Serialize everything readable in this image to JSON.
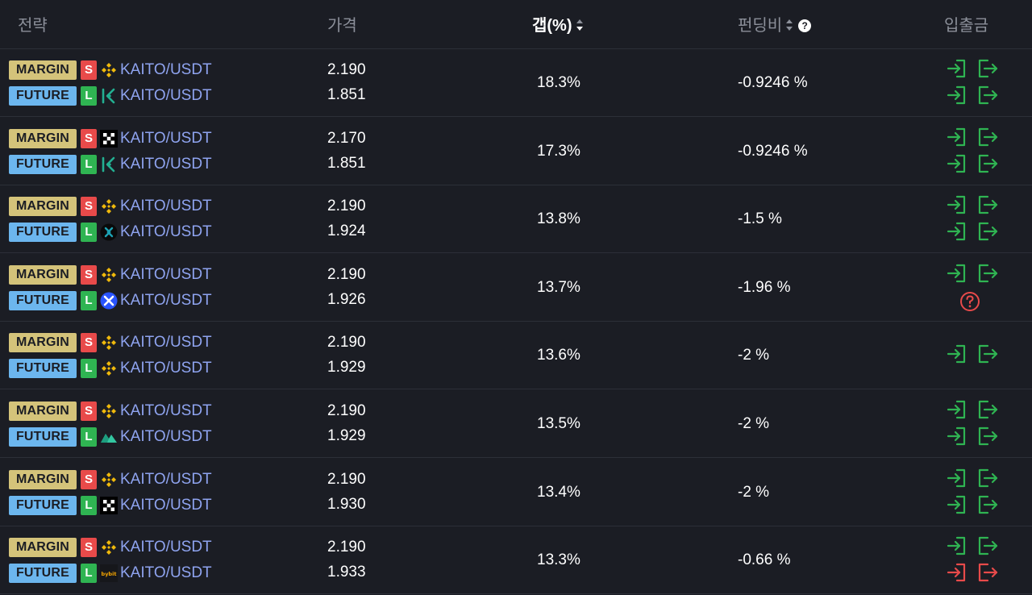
{
  "header": {
    "strategy": "전략",
    "price": "가격",
    "gap": "갭(%)",
    "funding": "펀딩비",
    "transfer": "입출금",
    "help_glyph": "?"
  },
  "colors": {
    "background": "#1b1d24",
    "margin_badge": "#d4c37a",
    "future_badge": "#6cb6ee",
    "short": "#e84a4a",
    "long": "#2fb452",
    "pair_text": "#8fa4f0",
    "transfer_ok": "#2fb452",
    "transfer_blocked": "#e84a4a"
  },
  "rows": [
    {
      "top": {
        "type": "MARGIN",
        "side": "S",
        "exchange_icon": "binance-icon",
        "pair": "KAITO/USDT",
        "price": "2.190"
      },
      "bottom": {
        "type": "FUTURE",
        "side": "L",
        "exchange_icon": "kucoin-icon",
        "pair": "KAITO/USDT",
        "price": "1.851"
      },
      "gap": "18.3%",
      "funding": "-0.9246 %",
      "transfer": {
        "top": [
          "ok",
          "ok"
        ],
        "bottom": [
          "ok",
          "ok"
        ]
      }
    },
    {
      "top": {
        "type": "MARGIN",
        "side": "S",
        "exchange_icon": "okx-icon",
        "pair": "KAITO/USDT",
        "price": "2.170"
      },
      "bottom": {
        "type": "FUTURE",
        "side": "L",
        "exchange_icon": "kucoin-icon",
        "pair": "KAITO/USDT",
        "price": "1.851"
      },
      "gap": "17.3%",
      "funding": "-0.9246 %",
      "transfer": {
        "top": [
          "ok",
          "ok"
        ],
        "bottom": [
          "ok",
          "ok"
        ]
      }
    },
    {
      "top": {
        "type": "MARGIN",
        "side": "S",
        "exchange_icon": "binance-icon",
        "pair": "KAITO/USDT",
        "price": "2.190"
      },
      "bottom": {
        "type": "FUTURE",
        "side": "L",
        "exchange_icon": "bitget-icon",
        "pair": "KAITO/USDT",
        "price": "1.924"
      },
      "gap": "13.8%",
      "funding": "-1.5 %",
      "transfer": {
        "top": [
          "ok",
          "ok"
        ],
        "bottom": [
          "ok",
          "ok"
        ]
      }
    },
    {
      "top": {
        "type": "MARGIN",
        "side": "S",
        "exchange_icon": "binance-icon",
        "pair": "KAITO/USDT",
        "price": "2.190"
      },
      "bottom": {
        "type": "FUTURE",
        "side": "L",
        "exchange_icon": "bingx-icon",
        "pair": "KAITO/USDT",
        "price": "1.926"
      },
      "gap": "13.7%",
      "funding": "-1.96 %",
      "transfer": {
        "top": [
          "ok",
          "ok"
        ],
        "bottom": "unknown"
      }
    },
    {
      "top": {
        "type": "MARGIN",
        "side": "S",
        "exchange_icon": "binance-icon",
        "pair": "KAITO/USDT",
        "price": "2.190"
      },
      "bottom": {
        "type": "FUTURE",
        "side": "L",
        "exchange_icon": "binance-icon",
        "pair": "KAITO/USDT",
        "price": "1.929"
      },
      "gap": "13.6%",
      "funding": "-2 %",
      "transfer": {
        "single": [
          "ok",
          "ok"
        ]
      }
    },
    {
      "top": {
        "type": "MARGIN",
        "side": "S",
        "exchange_icon": "binance-icon",
        "pair": "KAITO/USDT",
        "price": "2.190"
      },
      "bottom": {
        "type": "FUTURE",
        "side": "L",
        "exchange_icon": "mexc-icon",
        "pair": "KAITO/USDT",
        "price": "1.929"
      },
      "gap": "13.5%",
      "funding": "-2 %",
      "transfer": {
        "top": [
          "ok",
          "ok"
        ],
        "bottom": [
          "ok",
          "ok"
        ]
      }
    },
    {
      "top": {
        "type": "MARGIN",
        "side": "S",
        "exchange_icon": "binance-icon",
        "pair": "KAITO/USDT",
        "price": "2.190"
      },
      "bottom": {
        "type": "FUTURE",
        "side": "L",
        "exchange_icon": "okx-icon",
        "pair": "KAITO/USDT",
        "price": "1.930"
      },
      "gap": "13.4%",
      "funding": "-2 %",
      "transfer": {
        "top": [
          "ok",
          "ok"
        ],
        "bottom": [
          "ok",
          "ok"
        ]
      }
    },
    {
      "top": {
        "type": "MARGIN",
        "side": "S",
        "exchange_icon": "binance-icon",
        "pair": "KAITO/USDT",
        "price": "2.190"
      },
      "bottom": {
        "type": "FUTURE",
        "side": "L",
        "exchange_icon": "bybit-icon",
        "pair": "KAITO/USDT",
        "price": "1.933"
      },
      "gap": "13.3%",
      "funding": "-0.66 %",
      "transfer": {
        "top": [
          "ok",
          "ok"
        ],
        "bottom": [
          "blocked",
          "blocked"
        ]
      }
    }
  ]
}
